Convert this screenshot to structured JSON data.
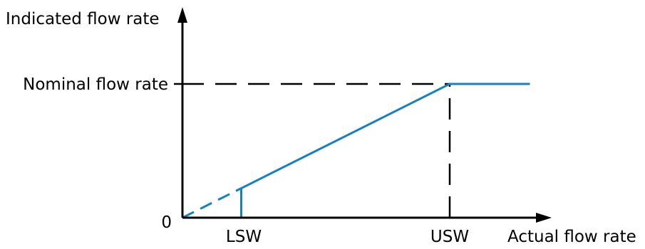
{
  "chart_data": {
    "type": "line",
    "title": "",
    "ylabel": "Indicated flow rate",
    "xlabel": "Actual flow rate",
    "y_ticks": [
      {
        "label": "0",
        "value": 0
      },
      {
        "label": "Nominal flow rate",
        "value": 1
      }
    ],
    "x_ticks": [
      {
        "label": "LSW",
        "value": 0.22
      },
      {
        "label": "USW",
        "value": 1
      }
    ],
    "x_max": 1.32,
    "y_max": 1.5,
    "series": [
      {
        "style": "solid",
        "points": [
          [
            0.22,
            0
          ],
          [
            0.22,
            0.22
          ],
          [
            1,
            1
          ],
          [
            1.3,
            1
          ]
        ]
      },
      {
        "style": "dashed",
        "points": [
          [
            0,
            0
          ],
          [
            0.22,
            0.22
          ]
        ]
      }
    ],
    "reference_lines": [
      {
        "orientation": "horizontal",
        "at": 1,
        "from": 0,
        "to": 1
      },
      {
        "orientation": "vertical",
        "at": 1,
        "from": 0,
        "to": 1
      }
    ],
    "grid": false,
    "legend": "none",
    "colors": {
      "series": "#1a80bb",
      "axes": "#000000"
    }
  }
}
